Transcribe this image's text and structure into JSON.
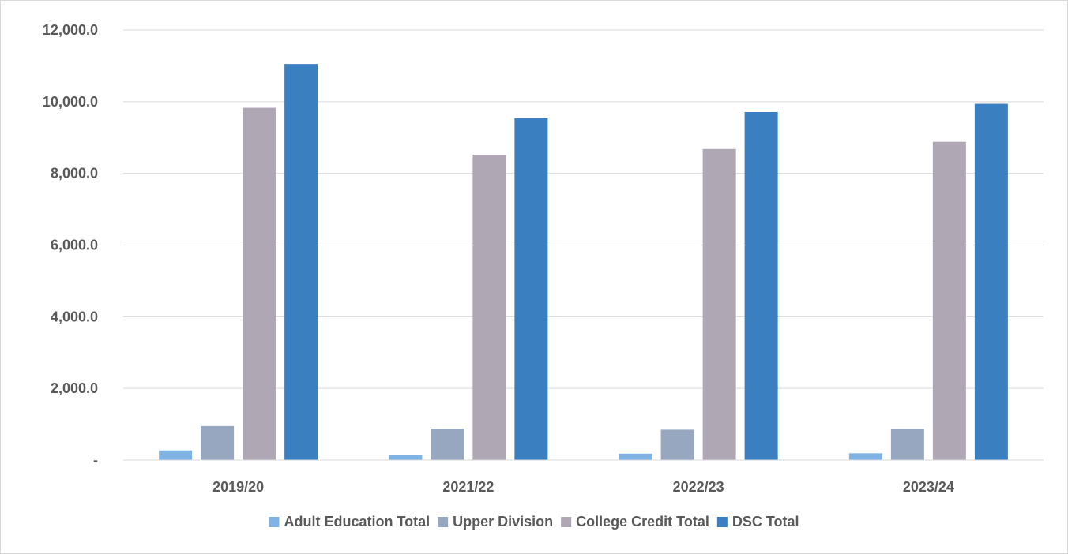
{
  "chart_data": {
    "type": "bar",
    "title": "",
    "xlabel": "",
    "ylabel": "",
    "categories": [
      "2019/20",
      "2021/22",
      "2022/23",
      "2023/24"
    ],
    "series": [
      {
        "name": "Adult Education Total",
        "color": "#7FB2E5",
        "values": [
          270,
          150,
          180,
          190
        ]
      },
      {
        "name": "Upper Division",
        "color": "#97A7BF",
        "values": [
          950,
          880,
          850,
          870
        ]
      },
      {
        "name": "College Credit Total",
        "color": "#B0A7B5",
        "values": [
          9830,
          8520,
          8680,
          8880
        ]
      },
      {
        "name": "DSC Total",
        "color": "#3A7FC0",
        "values": [
          11050,
          9540,
          9710,
          9940
        ]
      }
    ],
    "ylim": [
      0,
      12000
    ],
    "y_ticks": [
      0,
      2000,
      4000,
      6000,
      8000,
      10000,
      12000
    ],
    "y_tick_labels": [
      "-",
      "2,000.0",
      "4,000.0",
      "6,000.0",
      "8,000.0",
      "10,000.0",
      "12,000.0"
    ],
    "grid": true,
    "legend_position": "bottom"
  }
}
